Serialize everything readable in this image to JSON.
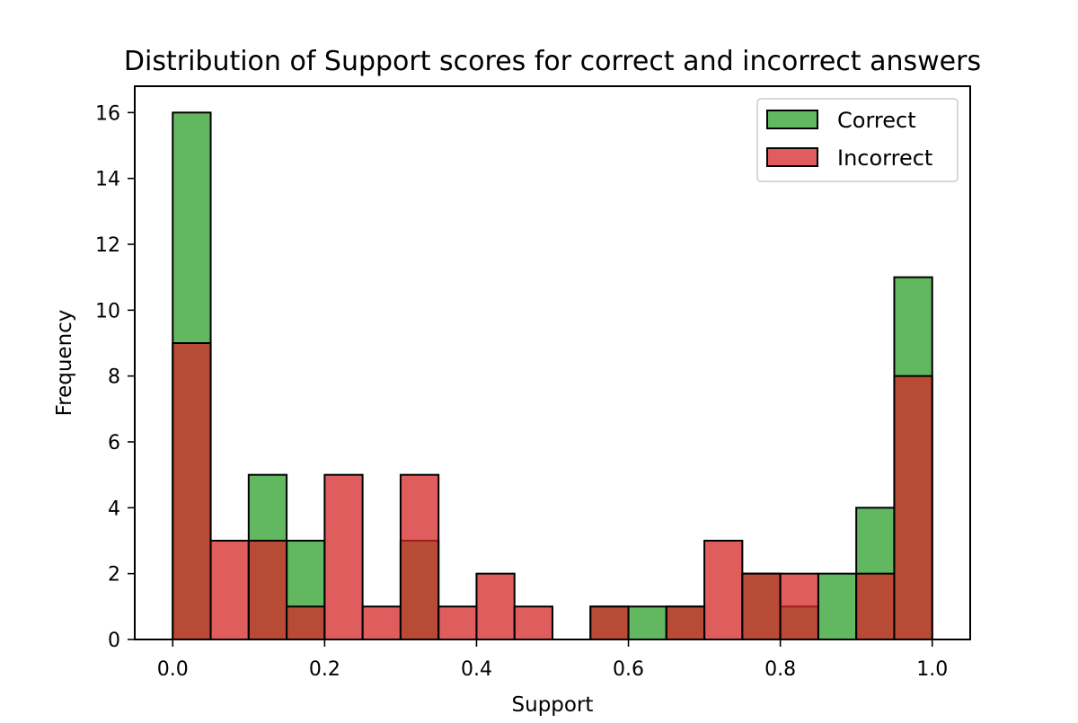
{
  "chart_data": {
    "type": "bar",
    "subtype": "overlaid-histogram",
    "title": "Distribution of Support scores for correct and incorrect answers",
    "xlabel": "Support",
    "ylabel": "Frequency",
    "xlim": [
      -0.05,
      1.05
    ],
    "ylim": [
      0,
      16.8
    ],
    "xticks": [
      "0.0",
      "0.2",
      "0.4",
      "0.6",
      "0.8",
      "1.0"
    ],
    "yticks": [
      "0",
      "2",
      "4",
      "6",
      "8",
      "10",
      "12",
      "14",
      "16"
    ],
    "grid": false,
    "legend_position": "top-right",
    "bin_width": 0.05,
    "bin_starts": [
      0.0,
      0.05,
      0.1,
      0.15,
      0.2,
      0.25,
      0.3,
      0.35,
      0.4,
      0.45,
      0.5,
      0.55,
      0.6,
      0.65,
      0.7,
      0.75,
      0.8,
      0.85,
      0.9,
      0.95
    ],
    "series": [
      {
        "name": "Correct",
        "color": "#2ca02c",
        "values": [
          16,
          0,
          5,
          3,
          0,
          0,
          3,
          0,
          0,
          0,
          0,
          1,
          1,
          1,
          0,
          2,
          1,
          2,
          4,
          11
        ]
      },
      {
        "name": "Incorrect",
        "color": "#d62728",
        "values": [
          9,
          3,
          3,
          1,
          5,
          1,
          5,
          1,
          2,
          1,
          0,
          1,
          0,
          1,
          3,
          2,
          2,
          0,
          2,
          8
        ]
      }
    ]
  }
}
